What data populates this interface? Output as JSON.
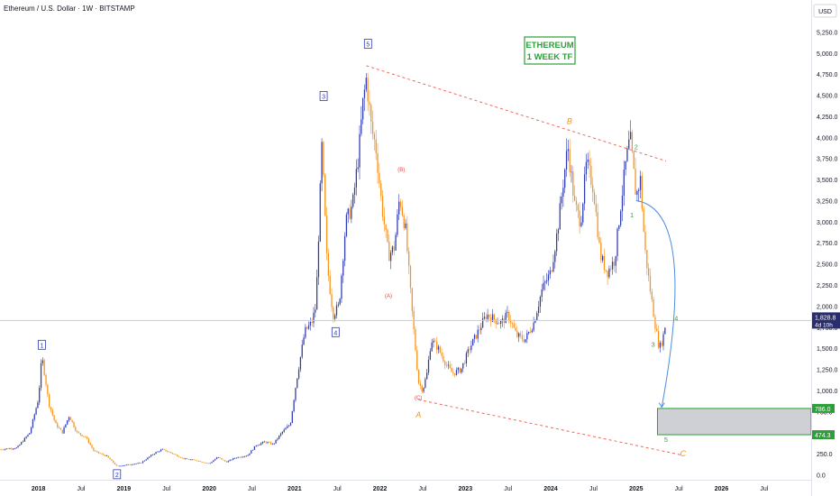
{
  "header": {
    "symbol_title": "Ethereum / U.S. Dollar · 1W · BITSTAMP",
    "currency_button": "USD"
  },
  "price_tag": {
    "value": "1,828.8",
    "countdown": "4d 10h"
  },
  "annotation_box": {
    "line1": "ETHEREUM",
    "line2": "1 WEEK TF"
  },
  "colors": {
    "background": "#ffffff",
    "up_candle": "#2e3bb3",
    "down_candle": "#f7931a",
    "trendline": "#f0685a",
    "current_price_line": "#a9d4f2",
    "projection_arrow": "#4c8de0",
    "target_box_fill": "#cfd0d6",
    "target_box_border": "#2e9e3a",
    "annotation_green": "#2e9e3a",
    "wave_orange": "#f7931a",
    "wave_red": "#e04848"
  },
  "chart_data": {
    "type": "candlestick",
    "title": "Ethereum / U.S. Dollar · 1W · BITSTAMP",
    "y_axis": {
      "ticks": [
        "0.0",
        "250.0",
        "500.0",
        "750.0",
        "1,000.0",
        "1,250.0",
        "1,500.0",
        "1,750.0",
        "2,000.0",
        "2,250.0",
        "2,500.0",
        "2,750.0",
        "3,000.0",
        "3,250.0",
        "3,500.0",
        "3,750.0",
        "4,000.0",
        "4,250.0",
        "4,500.0",
        "4,750.0",
        "5,000.0",
        "5,250.0"
      ],
      "range": [
        -60,
        5330
      ],
      "scale": "linear"
    },
    "x_axis": {
      "ticks": [
        {
          "label": "2018",
          "t": 2018.0
        },
        {
          "label": "Jul",
          "t": 2018.5
        },
        {
          "label": "2019",
          "t": 2019.0
        },
        {
          "label": "Jul",
          "t": 2019.5
        },
        {
          "label": "2020",
          "t": 2020.0
        },
        {
          "label": "Jul",
          "t": 2020.5
        },
        {
          "label": "2021",
          "t": 2021.0
        },
        {
          "label": "Jul",
          "t": 2021.5
        },
        {
          "label": "2022",
          "t": 2022.0
        },
        {
          "label": "Jul",
          "t": 2022.5
        },
        {
          "label": "2023",
          "t": 2023.0
        },
        {
          "label": "Jul",
          "t": 2023.5
        },
        {
          "label": "2024",
          "t": 2024.0
        },
        {
          "label": "Jul",
          "t": 2024.5
        },
        {
          "label": "2025",
          "t": 2025.0
        },
        {
          "label": "Jul",
          "t": 2025.5
        },
        {
          "label": "2026",
          "t": 2026.0
        },
        {
          "label": "Jul",
          "t": 2026.5
        }
      ],
      "range": [
        2017.55,
        2027.05
      ]
    },
    "price_path": [
      [
        2017.55,
        300
      ],
      [
        2017.75,
        320
      ],
      [
        2017.9,
        500
      ],
      [
        2018.0,
        900
      ],
      [
        2018.04,
        1400
      ],
      [
        2018.08,
        1150
      ],
      [
        2018.12,
        850
      ],
      [
        2018.2,
        600
      ],
      [
        2018.28,
        500
      ],
      [
        2018.36,
        700
      ],
      [
        2018.45,
        500
      ],
      [
        2018.55,
        450
      ],
      [
        2018.65,
        280
      ],
      [
        2018.8,
        220
      ],
      [
        2018.92,
        100
      ],
      [
        2019.05,
        120
      ],
      [
        2019.2,
        140
      ],
      [
        2019.35,
        250
      ],
      [
        2019.45,
        300
      ],
      [
        2019.55,
        260
      ],
      [
        2019.7,
        190
      ],
      [
        2019.85,
        170
      ],
      [
        2020.0,
        130
      ],
      [
        2020.1,
        210
      ],
      [
        2020.2,
        150
      ],
      [
        2020.3,
        200
      ],
      [
        2020.45,
        230
      ],
      [
        2020.55,
        350
      ],
      [
        2020.65,
        390
      ],
      [
        2020.75,
        360
      ],
      [
        2020.85,
        500
      ],
      [
        2020.95,
        600
      ],
      [
        2021.02,
        1100
      ],
      [
        2021.12,
        1700
      ],
      [
        2021.2,
        1800
      ],
      [
        2021.25,
        2000
      ],
      [
        2021.32,
        3900
      ],
      [
        2021.38,
        2500
      ],
      [
        2021.45,
        1900
      ],
      [
        2021.52,
        2000
      ],
      [
        2021.6,
        3000
      ],
      [
        2021.68,
        3200
      ],
      [
        2021.75,
        3800
      ],
      [
        2021.8,
        4400
      ],
      [
        2021.84,
        4700
      ],
      [
        2021.9,
        4100
      ],
      [
        2021.95,
        3900
      ],
      [
        2022.02,
        3200
      ],
      [
        2022.1,
        2600
      ],
      [
        2022.17,
        2700
      ],
      [
        2022.23,
        3300
      ],
      [
        2022.3,
        2900
      ],
      [
        2022.37,
        2000
      ],
      [
        2022.45,
        1100
      ],
      [
        2022.5,
        1000
      ],
      [
        2022.55,
        1200
      ],
      [
        2022.6,
        1600
      ],
      [
        2022.68,
        1500
      ],
      [
        2022.78,
        1300
      ],
      [
        2022.85,
        1200
      ],
      [
        2022.95,
        1250
      ],
      [
        2023.05,
        1500
      ],
      [
        2023.15,
        1700
      ],
      [
        2023.25,
        1900
      ],
      [
        2023.33,
        1850
      ],
      [
        2023.42,
        1800
      ],
      [
        2023.5,
        1900
      ],
      [
        2023.6,
        1650
      ],
      [
        2023.7,
        1600
      ],
      [
        2023.8,
        1800
      ],
      [
        2023.9,
        2200
      ],
      [
        2024.0,
        2400
      ],
      [
        2024.08,
        2900
      ],
      [
        2024.15,
        3500
      ],
      [
        2024.2,
        3900
      ],
      [
        2024.28,
        3200
      ],
      [
        2024.35,
        3000
      ],
      [
        2024.42,
        3700
      ],
      [
        2024.5,
        3400
      ],
      [
        2024.58,
        2600
      ],
      [
        2024.66,
        2400
      ],
      [
        2024.75,
        2550
      ],
      [
        2024.82,
        3200
      ],
      [
        2024.88,
        3700
      ],
      [
        2024.93,
        4000
      ],
      [
        2025.0,
        3300
      ],
      [
        2025.05,
        3500
      ],
      [
        2025.1,
        2700
      ],
      [
        2025.15,
        2300
      ],
      [
        2025.22,
        1800
      ],
      [
        2025.27,
        1500
      ],
      [
        2025.31,
        1600
      ],
      [
        2025.35,
        1828.8
      ]
    ]
  },
  "trendlines": {
    "upper": {
      "from": [
        2021.84,
        4850
      ],
      "to": [
        2025.35,
        3720
      ]
    },
    "lower": {
      "from": [
        2022.45,
        890
      ],
      "to": [
        2025.55,
        230
      ]
    }
  },
  "projection": {
    "from": [
      2025.0,
      3250
    ],
    "to": [
      2025.3,
      800
    ]
  },
  "target_zone": {
    "top": 786.0,
    "bottom": 474.3,
    "t_start": 2025.25,
    "t_end": 2027.05,
    "top_label": "786.0",
    "bottom_label": "474.3"
  },
  "wave_labels": [
    {
      "text": "1",
      "t": 2018.04,
      "price": 1530,
      "style": "box"
    },
    {
      "text": "2",
      "t": 2018.92,
      "price": -5,
      "style": "box"
    },
    {
      "text": "3",
      "t": 2021.34,
      "price": 4480,
      "style": "box"
    },
    {
      "text": "4",
      "t": 2021.48,
      "price": 1680,
      "style": "box"
    },
    {
      "text": "5",
      "t": 2021.86,
      "price": 5100,
      "style": "box"
    },
    {
      "text": "(A)",
      "t": 2022.1,
      "price": 2100,
      "style": "red"
    },
    {
      "text": "(B)",
      "t": 2022.25,
      "price": 3600,
      "style": "red"
    },
    {
      "text": "(C)",
      "t": 2022.45,
      "price": 890,
      "style": "red"
    },
    {
      "text": "A",
      "t": 2022.45,
      "price": 680,
      "style": "orange"
    },
    {
      "text": "B",
      "t": 2024.22,
      "price": 4160,
      "style": "orange"
    },
    {
      "text": "C",
      "t": 2025.55,
      "price": 220,
      "style": "orange"
    },
    {
      "text": "2",
      "t": 2025.0,
      "price": 3860,
      "style": "green"
    },
    {
      "text": "1",
      "t": 2024.95,
      "price": 3050,
      "style": "green"
    },
    {
      "text": "3",
      "t": 2025.2,
      "price": 1520,
      "style": "green"
    },
    {
      "text": "4",
      "t": 2025.47,
      "price": 1830,
      "style": "green"
    },
    {
      "text": "5",
      "t": 2025.35,
      "price": 390,
      "style": "green"
    }
  ]
}
